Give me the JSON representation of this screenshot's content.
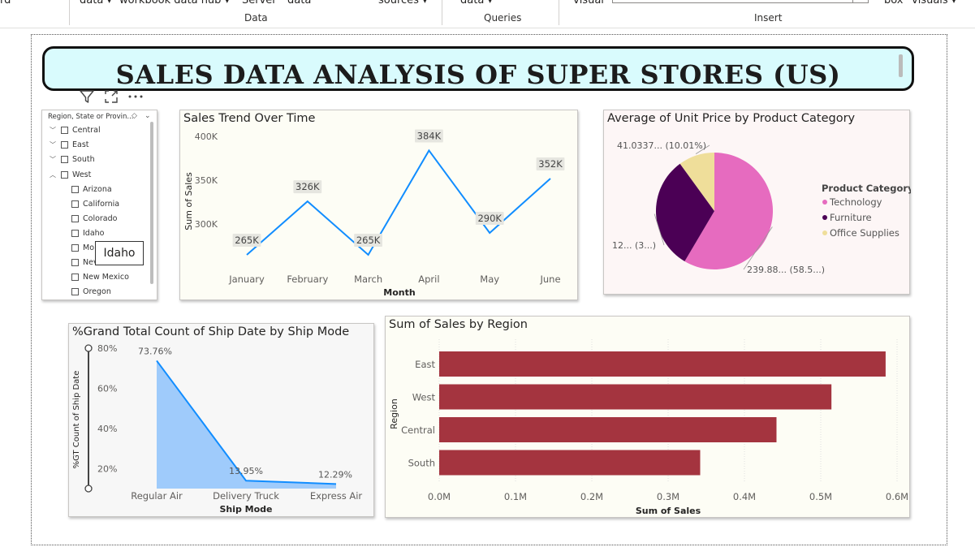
{
  "ribbon": {
    "items": [
      "rd",
      "data ▾",
      "workbook data hub ▾",
      "Server",
      "data",
      "sources ▾",
      "data ▾",
      "visual",
      "box",
      "visuals ▾"
    ],
    "groups": [
      "Data",
      "Queries",
      "Insert"
    ]
  },
  "report": {
    "title": "SALES DATA ANALYSIS OF SUPER STORES (US)"
  },
  "slicer": {
    "header": "Region, State or Provin...",
    "items": [
      {
        "label": "Central",
        "expanded": false
      },
      {
        "label": "East",
        "expanded": false
      },
      {
        "label": "South",
        "expanded": false
      },
      {
        "label": "West",
        "expanded": true
      }
    ],
    "children": [
      "Arizona",
      "California",
      "Colorado",
      "Idaho",
      "Mo",
      "Nev",
      "New Mexico",
      "Oregon"
    ],
    "tooltip": "Idaho"
  },
  "charts": {
    "sales_trend": {
      "title": "Sales Trend Over Time",
      "chart_data": {
        "type": "line",
        "categories": [
          "January",
          "February",
          "March",
          "April",
          "May",
          "June"
        ],
        "values": [
          265000,
          326000,
          265000,
          384000,
          290000,
          352000
        ],
        "data_labels": [
          "265K",
          "326K",
          "265K",
          "384K",
          "290K",
          "352K"
        ],
        "xlabel": "Month",
        "ylabel": "Sum of Sales",
        "y_ticks": [
          {
            "value": 300000,
            "label": "300K"
          },
          {
            "value": 350000,
            "label": "350K"
          },
          {
            "value": 400000,
            "label": "400K"
          }
        ],
        "ylim": [
          252000,
          402000
        ],
        "color": "#118dff"
      }
    },
    "unit_price": {
      "title": "Average of Unit Price by Product Category",
      "chart_data": {
        "type": "pie",
        "slices": [
          {
            "name": "Technology",
            "percent": 58.5,
            "color": "#e66bbf"
          },
          {
            "name": "Furniture",
            "percent": 31.49,
            "color": "#4b0055"
          },
          {
            "name": "Office Supplies",
            "percent": 10.01,
            "color": "#efde9a"
          }
        ],
        "data_labels": [
          "239.88... (58.5...)",
          "12... (3...)",
          "41.0337... (10.01%)"
        ],
        "legend_title": "Product Category",
        "legend": [
          "Technology",
          "Furniture",
          "Office Supplies"
        ],
        "legend_position": "right"
      }
    },
    "ship_mode": {
      "title": "%Grand Total Count of Ship Date by Ship Mode",
      "chart_data": {
        "type": "area",
        "categories": [
          "Regular Air",
          "Delivery Truck",
          "Express Air"
        ],
        "values": [
          73.76,
          13.95,
          12.29
        ],
        "data_labels": [
          "73.76%",
          "13.95%",
          "12.29%"
        ],
        "xlabel": "Ship Mode",
        "ylabel": "%GT Count of Ship Date",
        "y_ticks": [
          {
            "value": 20,
            "label": "20%"
          },
          {
            "value": 40,
            "label": "40%"
          },
          {
            "value": 60,
            "label": "60%"
          },
          {
            "value": 80,
            "label": "80%"
          }
        ],
        "ylim": [
          10,
          80
        ],
        "line_color": "#118dff",
        "fill_color": "#9fcbfb"
      }
    },
    "sales_region": {
      "title": "Sum of Sales by Region",
      "chart_data": {
        "type": "bar",
        "orientation": "horizontal",
        "categories": [
          "East",
          "West",
          "Central",
          "South"
        ],
        "values": [
          585000,
          514000,
          442000,
          342000
        ],
        "xlabel": "Sum of Sales",
        "ylabel": "Region",
        "x_ticks": [
          {
            "value": 0,
            "label": "0.0M"
          },
          {
            "value": 100000,
            "label": "0.1M"
          },
          {
            "value": 200000,
            "label": "0.2M"
          },
          {
            "value": 300000,
            "label": "0.3M"
          },
          {
            "value": 400000,
            "label": "0.4M"
          },
          {
            "value": 500000,
            "label": "0.5M"
          },
          {
            "value": 600000,
            "label": "0.6M"
          }
        ],
        "xlim": [
          0,
          600000
        ],
        "color": "#a4343f"
      }
    }
  },
  "visual_header": {
    "icons": [
      "filter-icon",
      "focus-mode-icon",
      "more-options-icon"
    ]
  }
}
